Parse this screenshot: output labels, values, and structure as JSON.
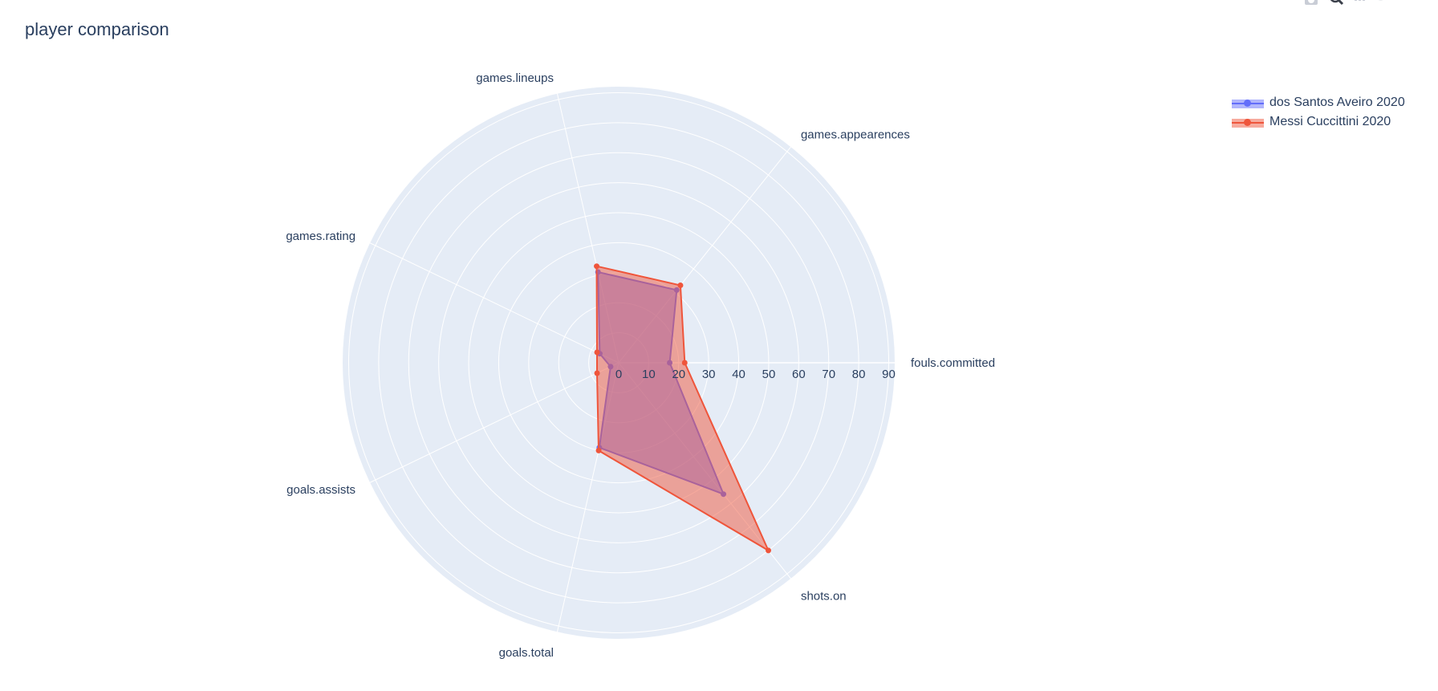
{
  "chart_data": {
    "type": "radar",
    "title": "player comparison",
    "categories": [
      "fouls.committed",
      "games.appearences",
      "games.lineups",
      "games.rating",
      "goals.assists",
      "goals.total",
      "shots.on"
    ],
    "radial_range": [
      0,
      92
    ],
    "radial_ticks": [
      0,
      10,
      20,
      30,
      40,
      50,
      60,
      70,
      80,
      90
    ],
    "legend_position": "top-right",
    "series": [
      {
        "name": "dos Santos Aveiro 2020",
        "color": "#636efa",
        "values": [
          17,
          31,
          31,
          7,
          3,
          29,
          56
        ]
      },
      {
        "name": "Messi Cuccittini 2020",
        "color": "#ef553b",
        "values": [
          22,
          33,
          33,
          8,
          8,
          30,
          80
        ]
      }
    ]
  },
  "modebar": {
    "icons": [
      "camera-icon",
      "zoom-icon",
      "select-box-icon",
      "lasso-icon",
      "plotly-logo-icon"
    ]
  }
}
